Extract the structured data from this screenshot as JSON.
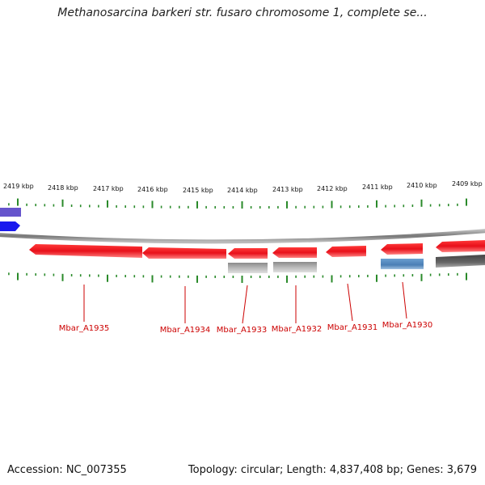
{
  "title": "Methanosarcina barkeri str. fusaro chromosome 1, complete se...",
  "accession_label": "Accession: NC_007355",
  "topology_label": "Topology: circular; Length: 4,837,408 bp; Genes: 3,679",
  "ticks": [
    {
      "label": "2419 kbp",
      "kbp": 2419
    },
    {
      "label": "2418 kbp",
      "kbp": 2418
    },
    {
      "label": "2417 kbp",
      "kbp": 2417
    },
    {
      "label": "2416 kbp",
      "kbp": 2416
    },
    {
      "label": "2415 kbp",
      "kbp": 2415
    },
    {
      "label": "2414 kbp",
      "kbp": 2414
    },
    {
      "label": "2413 kbp",
      "kbp": 2413
    },
    {
      "label": "2412 kbp",
      "kbp": 2412
    },
    {
      "label": "2411 kbp",
      "kbp": 2411
    },
    {
      "label": "2410 kbp",
      "kbp": 2410
    },
    {
      "label": "2409 kbp",
      "kbp": 2409
    }
  ],
  "gene_labels": [
    "Mbar_A1935",
    "Mbar_A1934",
    "Mbar_A1933",
    "Mbar_A1932",
    "Mbar_A1931",
    "Mbar_A1930"
  ],
  "colors": {
    "gene": "#e8101a",
    "rrna": "#b0b0b0",
    "blue": "#4a7fb5",
    "dark": "#666666",
    "label": "#cc0000",
    "tick": "#2a8a2a"
  }
}
